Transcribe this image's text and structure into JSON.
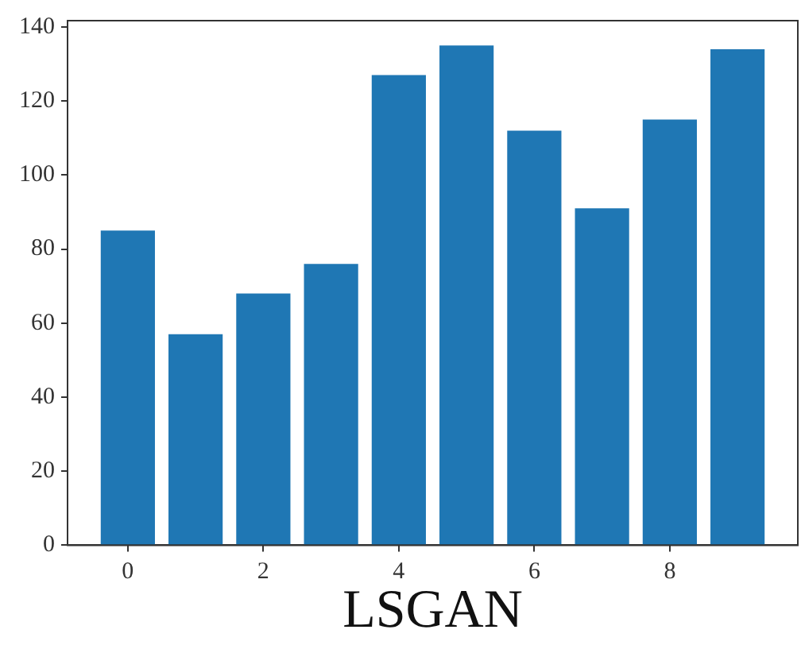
{
  "chart_data": {
    "type": "bar",
    "xlabel": "LSGAN",
    "x": [
      0,
      1,
      2,
      3,
      4,
      5,
      6,
      7,
      8,
      9
    ],
    "values": [
      85,
      57,
      68,
      76,
      127,
      135,
      112,
      91,
      115,
      134
    ],
    "color": "#1f77b4",
    "xlim": [
      -0.89,
      9.89
    ],
    "xticks": [
      0,
      2,
      4,
      6,
      8
    ],
    "ylim": [
      0,
      141.7
    ],
    "yticks": [
      0,
      20,
      40,
      60,
      80,
      100,
      120,
      140
    ],
    "grid": false,
    "legend": false
  }
}
